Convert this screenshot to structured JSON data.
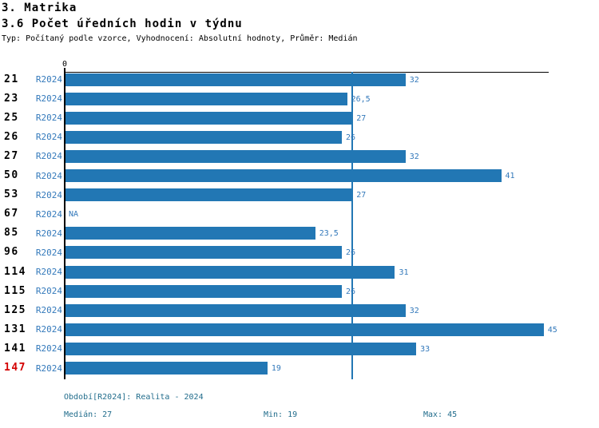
{
  "title": "3. Matrika",
  "subtitle": "3.6 Počet úředních hodin v týdnu",
  "meta": "Typ: Počítaný podle vzorce, Vyhodnocení: Absolutní hodnoty, Průměr: Medián",
  "colors": {
    "bar": "#2277b4",
    "series_label": "#3379bb",
    "value_label": "#3379bb",
    "legend_text": "#226d8c",
    "alert_row": "#d40000",
    "axis": "#000000"
  },
  "chart_data": {
    "type": "bar",
    "orientation": "horizontal",
    "title": "3.6 Počet úředních hodin v týdnu",
    "series_name": "R2024",
    "xlabel": "",
    "ylabel": "",
    "xlim": [
      0,
      45.5
    ],
    "x_axis": {
      "zero_label": "0"
    },
    "median_line_value": 27,
    "legend_position": "bottom",
    "grid": false,
    "rows": [
      {
        "id": "21",
        "series": "R2024",
        "value": 32,
        "label": "32"
      },
      {
        "id": "23",
        "series": "R2024",
        "value": 26.5,
        "label": "26,5"
      },
      {
        "id": "25",
        "series": "R2024",
        "value": 27,
        "label": "27"
      },
      {
        "id": "26",
        "series": "R2024",
        "value": 26,
        "label": "26"
      },
      {
        "id": "27",
        "series": "R2024",
        "value": 32,
        "label": "32"
      },
      {
        "id": "50",
        "series": "R2024",
        "value": 41,
        "label": "41"
      },
      {
        "id": "53",
        "series": "R2024",
        "value": 27,
        "label": "27"
      },
      {
        "id": "67",
        "series": "R2024",
        "value": null,
        "label": "NA"
      },
      {
        "id": "85",
        "series": "R2024",
        "value": 23.5,
        "label": "23,5"
      },
      {
        "id": "96",
        "series": "R2024",
        "value": 26,
        "label": "26"
      },
      {
        "id": "114",
        "series": "R2024",
        "value": 31,
        "label": "31"
      },
      {
        "id": "115",
        "series": "R2024",
        "value": 26,
        "label": "26"
      },
      {
        "id": "125",
        "series": "R2024",
        "value": 32,
        "label": "32"
      },
      {
        "id": "131",
        "series": "R2024",
        "value": 45,
        "label": "45"
      },
      {
        "id": "141",
        "series": "R2024",
        "value": 33,
        "label": "33"
      },
      {
        "id": "147",
        "series": "R2024",
        "value": 19,
        "label": "19",
        "alert": true
      }
    ]
  },
  "legend": {
    "period": "Období[R2024]: Realita - 2024",
    "median": "Medián: 27",
    "min": "Min: 19",
    "max": "Max: 45"
  }
}
